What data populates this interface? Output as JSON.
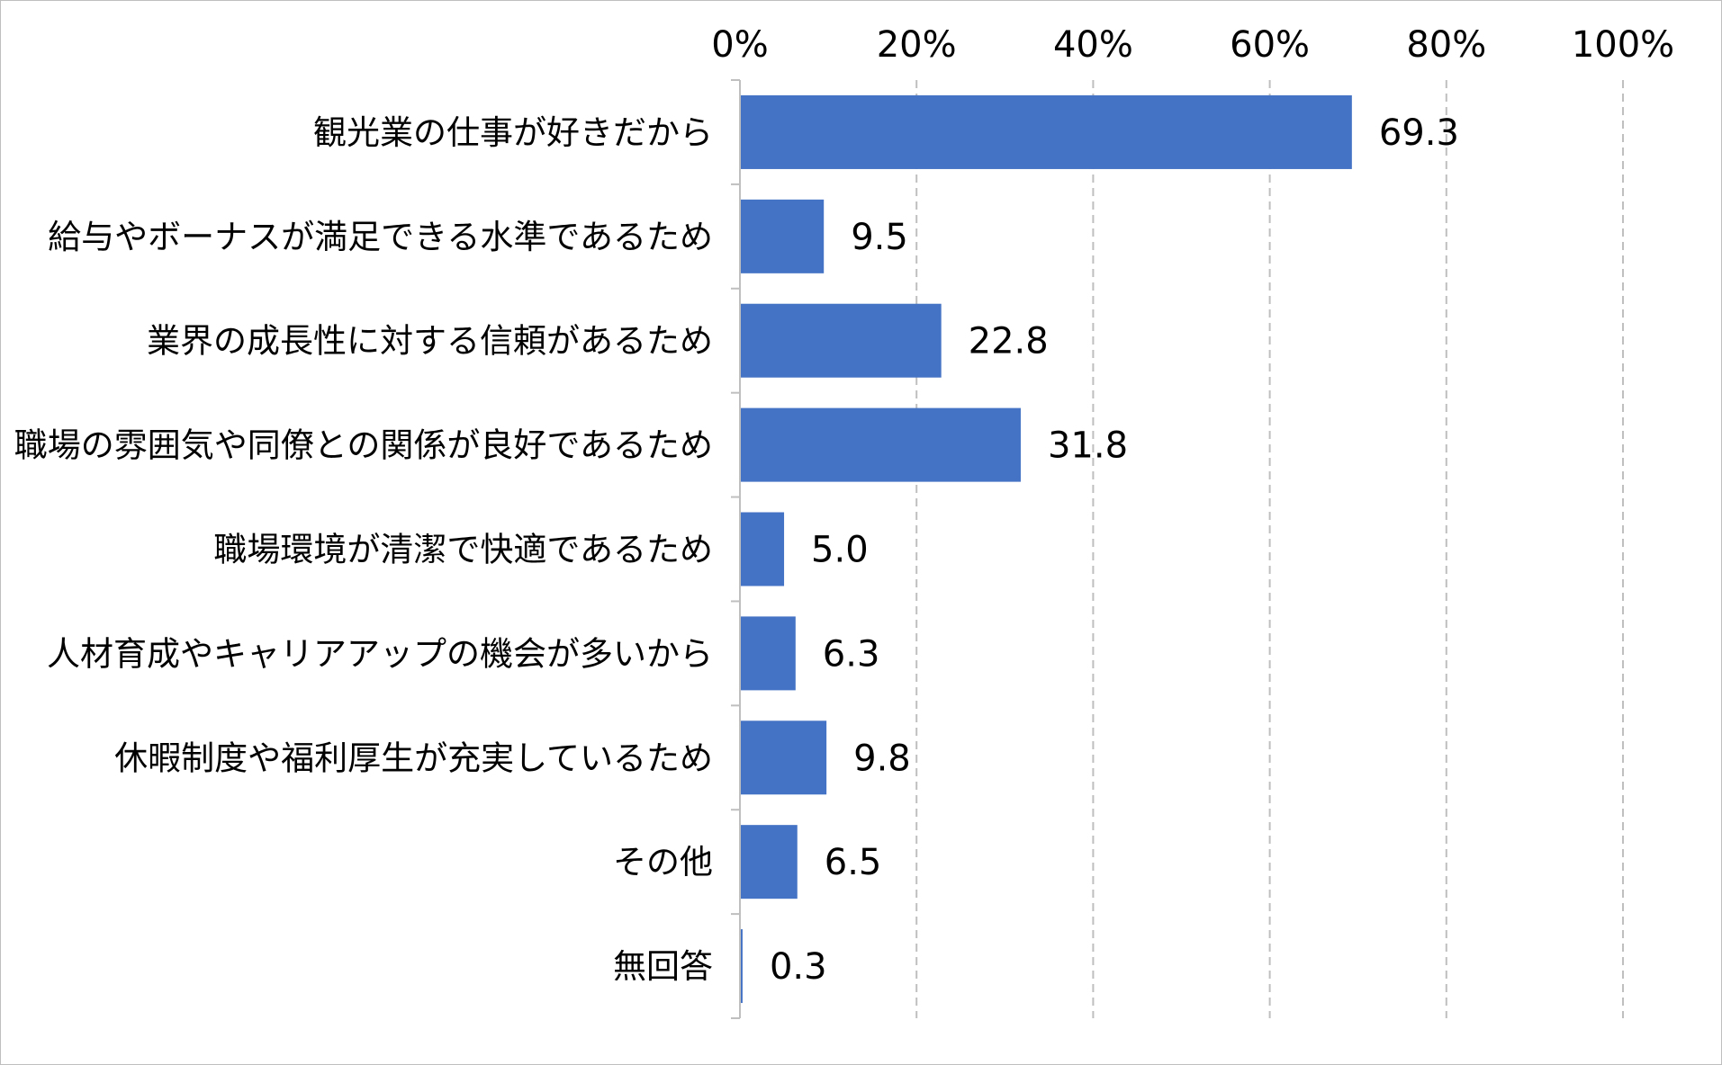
{
  "chart_data": {
    "type": "bar",
    "orientation": "horizontal",
    "title": "",
    "xlabel": "",
    "ylabel": "",
    "xlim": [
      0,
      100
    ],
    "x_ticks": [
      "0%",
      "20%",
      "40%",
      "60%",
      "80%",
      "100%"
    ],
    "x_tick_values": [
      0,
      20,
      40,
      60,
      80,
      100
    ],
    "grid": "vertical-dashed",
    "legend": "none",
    "bar_color": "#4472c4",
    "categories": [
      "観光業の仕事が好きだから",
      "給与やボーナスが満足できる水準であるため",
      "業界の成長性に対する信頼があるため",
      "職場の雰囲気や同僚との関係が良好であるため",
      "職場環境が清潔で快適であるため",
      "人材育成やキャリアアップの機会が多いから",
      "休暇制度や福利厚生が充実しているため",
      "その他",
      "無回答"
    ],
    "values": [
      69.3,
      9.5,
      22.8,
      31.8,
      5.0,
      6.3,
      9.8,
      6.5,
      0.3
    ],
    "value_labels": [
      "69.3",
      "9.5",
      "22.8",
      "31.8",
      "5.0",
      "6.3",
      "9.8",
      "6.5",
      "0.3"
    ]
  }
}
